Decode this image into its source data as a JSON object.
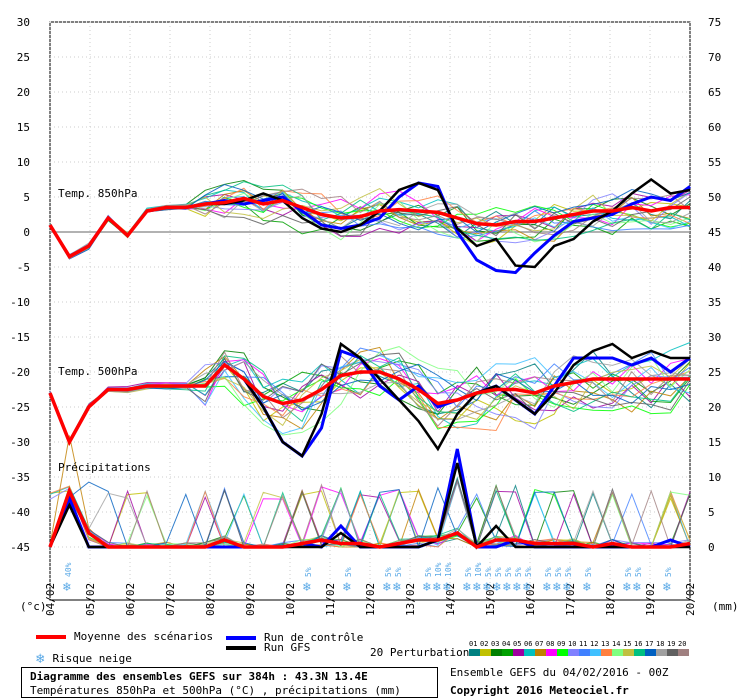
{
  "chart_data": {
    "type": "line",
    "title": "Diagramme des ensembles GEFS sur 384h : 43.3N 13.4E",
    "subtitle": "Températures 850hPa et 500hPa (°C) , précipitations (mm)",
    "left_axis": {
      "unit_label": "(°c)",
      "ticks": [
        30,
        25,
        20,
        15,
        10,
        5,
        0,
        -5,
        -10,
        -15,
        -20,
        -25,
        -30,
        -35,
        -40,
        -45
      ],
      "range": [
        -45,
        30
      ]
    },
    "right_axis": {
      "unit_label": "(mm)",
      "ticks": [
        75,
        70,
        65,
        60,
        55,
        50,
        45,
        40,
        35,
        30,
        25,
        20,
        15,
        10,
        5,
        0
      ],
      "range": [
        0,
        75
      ]
    },
    "x_labels": [
      "04/02",
      "05/02",
      "06/02",
      "07/02",
      "08/02",
      "09/02",
      "10/02",
      "11/02",
      "12/02",
      "13/02",
      "14/02",
      "15/02",
      "16/02",
      "17/02",
      "18/02",
      "19/02",
      "20/02"
    ],
    "panels": [
      {
        "label": "Temp. 850hPa",
        "mean": [
          1,
          -3.5,
          -2,
          2,
          -0.5,
          3,
          3.5,
          3.5,
          4,
          4.2,
          4.8,
          4,
          4.5,
          3.5,
          2.5,
          2,
          2.2,
          3,
          3.2,
          3,
          2.8,
          2,
          1.2,
          1,
          1.5,
          1.5,
          2,
          2.5,
          3,
          3,
          3.5,
          3,
          3.5,
          3.5
        ],
        "control": [
          1,
          -3.5,
          -2,
          2,
          -0.5,
          3,
          3.5,
          3.5,
          4,
          4.5,
          4,
          4.5,
          5,
          3,
          1,
          0.5,
          1,
          2,
          5,
          7,
          6.5,
          0,
          -4,
          -5.5,
          -5.8,
          -3,
          -0.5,
          1.5,
          2,
          2.5,
          4,
          5,
          4.5,
          6.5
        ],
        "gfs": [
          1,
          -3.5,
          -2,
          2,
          -0.5,
          3,
          3.5,
          3.5,
          4,
          4,
          4.5,
          5.5,
          4.5,
          2,
          0.5,
          0,
          1,
          3,
          6,
          7,
          6,
          0.5,
          -2,
          -1,
          -4.8,
          -5,
          -2,
          -1,
          1.5,
          3,
          5.5,
          7.5,
          5.5,
          6
        ]
      },
      {
        "label": "Temp. 500hPa",
        "mean": [
          -23,
          -30,
          -25,
          -22.5,
          -22.5,
          -22,
          -22,
          -22,
          -22,
          -19,
          -21,
          -23.5,
          -24.5,
          -24,
          -22.5,
          -20.5,
          -20,
          -20,
          -21,
          -22.5,
          -24.5,
          -24,
          -23,
          -22.5,
          -22.5,
          -23,
          -22,
          -21.5,
          -21,
          -21,
          -21,
          -21,
          -21,
          -21
        ],
        "control": [
          -23,
          -30,
          -25,
          -22.5,
          -22.5,
          -22,
          -22,
          -22,
          -22,
          -19,
          -21,
          -25,
          -30,
          -32,
          -28,
          -17,
          -18,
          -22,
          -24,
          -22,
          -25,
          -24,
          -23,
          -22,
          -24,
          -26,
          -22,
          -18,
          -18,
          -18,
          -19,
          -18,
          -20,
          -18
        ],
        "gfs": [
          -23,
          -30,
          -25,
          -22.5,
          -22.5,
          -22,
          -22,
          -22,
          -22,
          -19,
          -21,
          -25,
          -30,
          -32,
          -26,
          -16,
          -18,
          -21,
          -24,
          -27,
          -31,
          -26,
          -23,
          -22,
          -24,
          -26,
          -23,
          -19,
          -17,
          -16,
          -18,
          -17,
          -18,
          -18
        ]
      },
      {
        "label": "Précipitations",
        "mean_mm": [
          0,
          8,
          2,
          0,
          0,
          0,
          0,
          0,
          0,
          1,
          0,
          0,
          0,
          0.5,
          1,
          0.5,
          0.5,
          0,
          0.5,
          1,
          1,
          2,
          0,
          1,
          1,
          0.5,
          0.5,
          0.5,
          0,
          0.5,
          0,
          0,
          0,
          0.5
        ],
        "control_mm": [
          0,
          7,
          0,
          0,
          0,
          0,
          0,
          0,
          0,
          0,
          0,
          0,
          0,
          0.5,
          0,
          3,
          0,
          0,
          0,
          0,
          1,
          14,
          0,
          0,
          1,
          0,
          0,
          0,
          0,
          0,
          0,
          0,
          1,
          0
        ],
        "gfs_mm": [
          0,
          6,
          0,
          0,
          0,
          0,
          0,
          0,
          0,
          1,
          0,
          0,
          0,
          0,
          0,
          2,
          0,
          0,
          0,
          0,
          1,
          12,
          0,
          3,
          0,
          0,
          0,
          0,
          0,
          0,
          0,
          0,
          0,
          0
        ]
      }
    ],
    "snow_risk": [
      {
        "x": "04/02",
        "label": "40%"
      },
      {
        "x": "10/02",
        "label": "5%"
      },
      {
        "x": "11/02",
        "label": "5%"
      },
      {
        "x": "12/02",
        "label": "5%"
      },
      {
        "x": "12/02",
        "label": "5%"
      },
      {
        "x": "13/02",
        "label": "5%"
      },
      {
        "x": "13/02",
        "label": "10%"
      },
      {
        "x": "13/02",
        "label": "10%"
      },
      {
        "x": "14/02",
        "label": "5%"
      },
      {
        "x": "14/02",
        "label": "10%"
      },
      {
        "x": "14/02",
        "label": "5%"
      },
      {
        "x": "14/02",
        "label": "5%"
      },
      {
        "x": "15/02",
        "label": "5%"
      },
      {
        "x": "15/02",
        "label": "5%"
      },
      {
        "x": "15/02",
        "label": "5%"
      },
      {
        "x": "16/02",
        "label": "5%"
      },
      {
        "x": "16/02",
        "label": "5%"
      },
      {
        "x": "16/02",
        "label": "5%"
      },
      {
        "x": "17/02",
        "label": "5%"
      },
      {
        "x": "18/02",
        "label": "5%"
      },
      {
        "x": "18/02",
        "label": "5%"
      },
      {
        "x": "19/02",
        "label": "5%"
      }
    ],
    "colors": {
      "mean": "#ff0000",
      "control": "#0000ff",
      "gfs": "#000000",
      "grid": "#888888",
      "snow": "#5aa9e6"
    },
    "perturbation_colors": [
      "#008080",
      "#c0c000",
      "#008000",
      "#00a000",
      "#a000a0",
      "#00c0c0",
      "#c08000",
      "#ff00ff",
      "#00ff00",
      "#8080ff",
      "#4080ff",
      "#40c0ff",
      "#ff8040",
      "#80ff80",
      "#c0c040",
      "#00c080",
      "#0060c0",
      "#a0a0a0",
      "#606060",
      "#a08080"
    ],
    "grid": true
  },
  "legend": {
    "mean_label": "Moyenne des scénarios",
    "control_label": "Run de contrôle",
    "gfs_label": "Run GFS",
    "snow_label": "Risque neige",
    "snow_icon": "snowflake-icon",
    "pert_label": "20 Perturbations",
    "pert_numbers": [
      "01",
      "02",
      "03",
      "04",
      "05",
      "06",
      "07",
      "08",
      "09",
      "10",
      "11",
      "12",
      "13",
      "14",
      "15",
      "16",
      "17",
      "18",
      "19",
      "20"
    ]
  },
  "footer": {
    "title": "Diagramme des ensembles GEFS sur 384h : 43.3N 13.4E",
    "subtitle": "Températures 850hPa et 500hPa (°C) , précipitations (mm)",
    "ensemble_label": "Ensemble GEFS du 04/02/2016 - 00Z",
    "copyright": "Copyright 2016 Meteociel.fr"
  }
}
